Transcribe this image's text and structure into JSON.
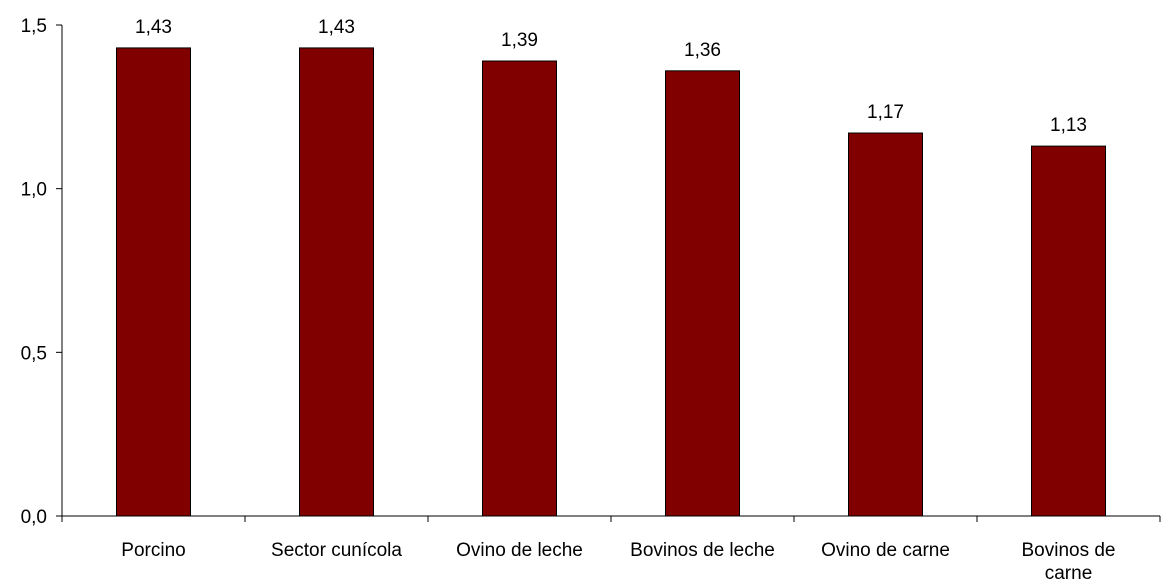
{
  "chart_data": {
    "type": "bar",
    "categories": [
      [
        "Porcino"
      ],
      [
        "Sector cunícola"
      ],
      [
        "Ovino de leche"
      ],
      [
        "Bovinos de leche"
      ],
      [
        "Ovino de carne"
      ],
      [
        "Bovinos de",
        "carne"
      ]
    ],
    "values": [
      1.43,
      1.43,
      1.39,
      1.36,
      1.17,
      1.13
    ],
    "value_labels": [
      "1,43",
      "1,43",
      "1,39",
      "1,36",
      "1,17",
      "1,13"
    ],
    "ylim": [
      0,
      1.5
    ],
    "yticks": [
      0,
      0.5,
      1.0,
      1.5
    ],
    "ytick_labels": [
      "0,0",
      "0,5",
      "1,0",
      "1,5"
    ],
    "grid": false,
    "bar_color": "#800000"
  }
}
